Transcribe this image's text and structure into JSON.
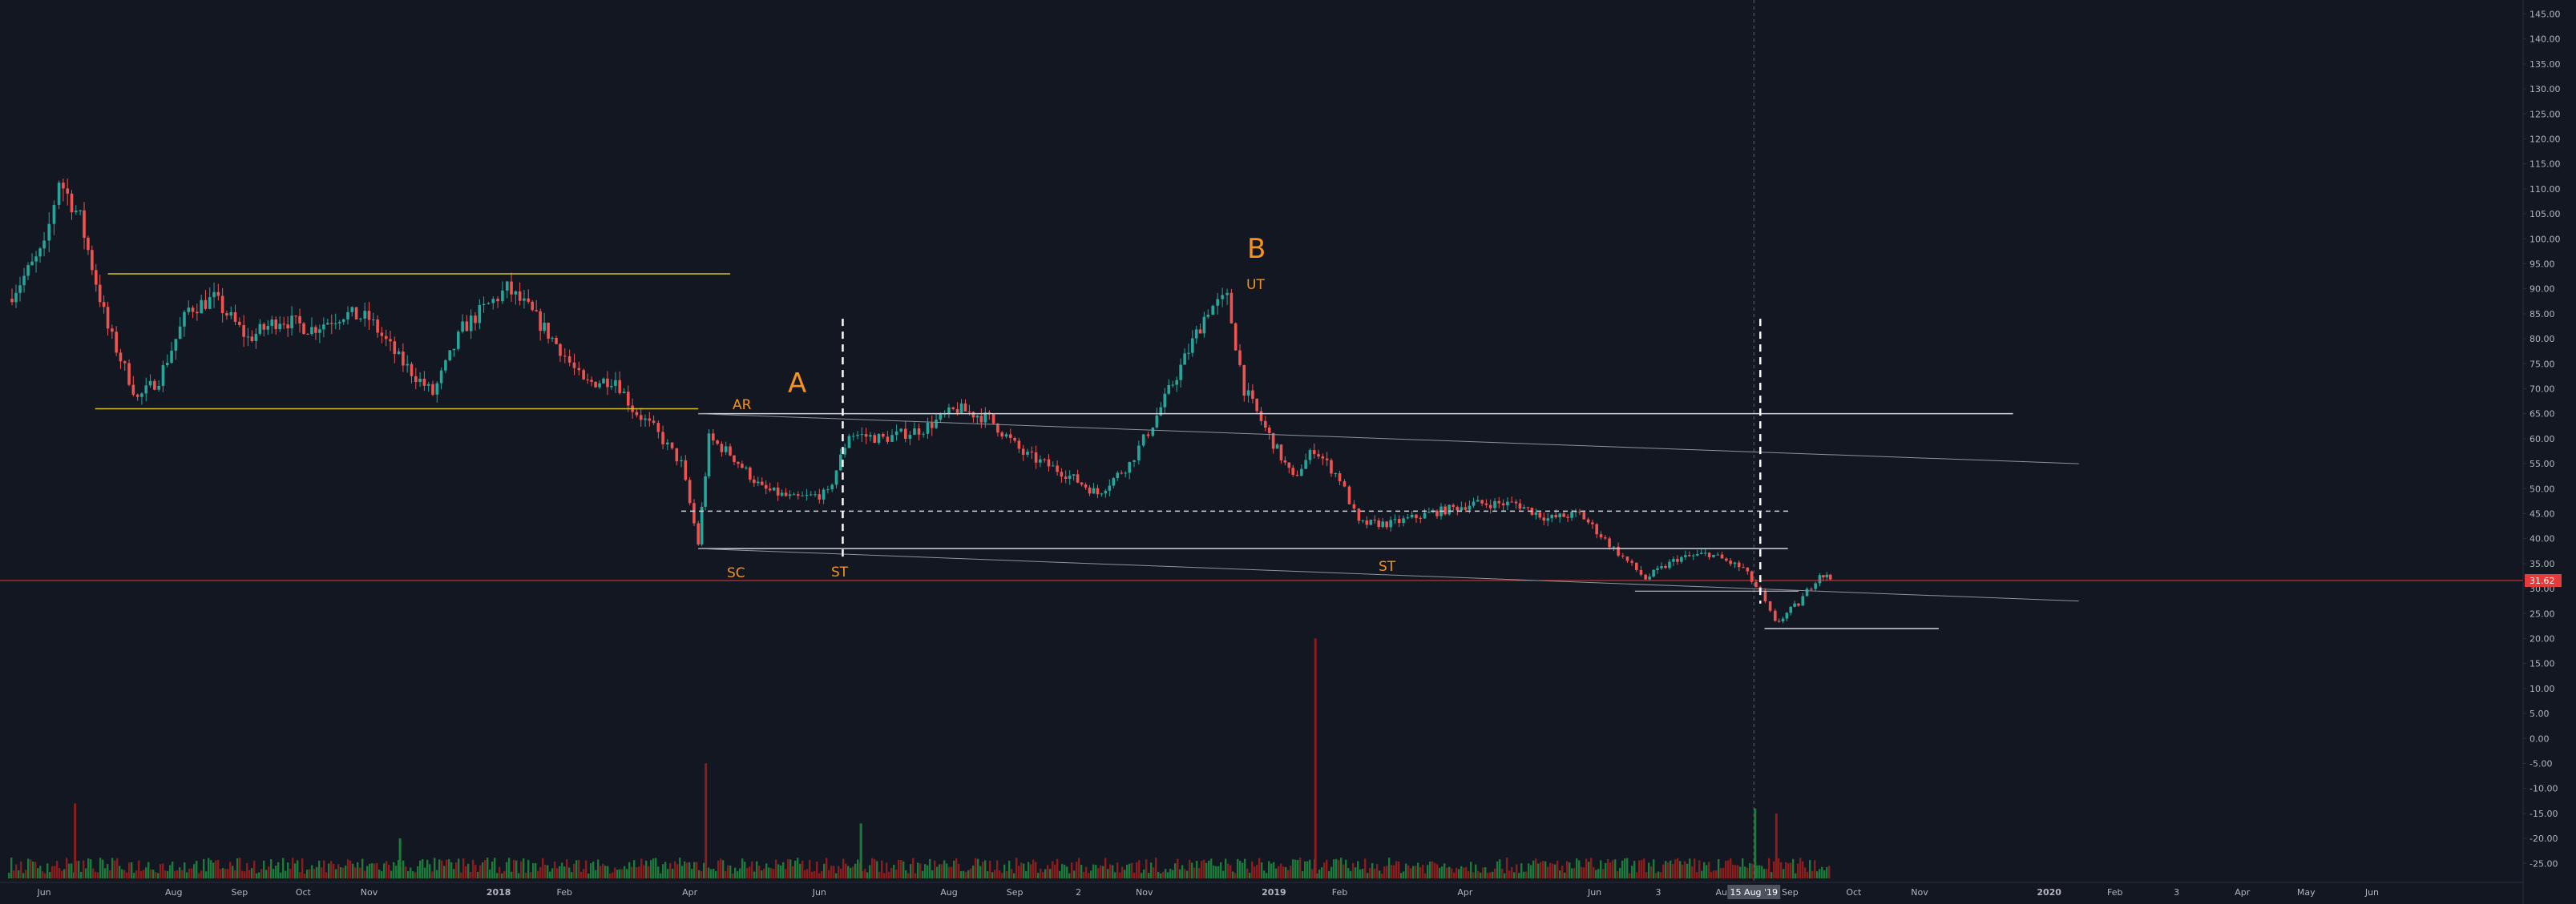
{
  "colors": {
    "background": "#131722",
    "up": "#26a69a",
    "down": "#ef5350",
    "volume_up": "#1c7a3a",
    "volume_down": "#8b1d1d",
    "range_line": "#d4c12a",
    "level_line": "#d1d4dc",
    "trend_line": "#8f939c",
    "annotation": "#f7931a",
    "price_line": "#e63b3b",
    "axis_text": "#b2b5be"
  },
  "chart_data": {
    "type": "candlestick",
    "x_ticks": [
      "Jun",
      "Aug",
      "Sep",
      "Oct",
      "Nov",
      "2018",
      "Feb",
      "Apr",
      "Jun",
      "Aug",
      "Sep",
      "2",
      "Nov",
      "2019",
      "Feb",
      "Apr",
      "Jun",
      "3",
      "Aug",
      "Sep",
      "Oct",
      "Nov",
      "2020",
      "Feb",
      "3",
      "Apr",
      "May",
      "Jun"
    ],
    "y_ticks": [
      "145.00",
      "140.00",
      "135.00",
      "130.00",
      "125.00",
      "120.00",
      "115.00",
      "110.00",
      "105.00",
      "100.00",
      "95.00",
      "90.00",
      "85.00",
      "80.00",
      "75.00",
      "70.00",
      "65.00",
      "60.00",
      "55.00",
      "50.00",
      "45.00",
      "40.00",
      "35.00",
      "30.00",
      "25.00",
      "20.00",
      "15.00",
      "10.00",
      "5.00",
      "0.00",
      "-5.00",
      "-10.00",
      "-15.00",
      "-20.00",
      "-25.00"
    ],
    "ylim": [
      -28,
      147
    ],
    "last_price_label": "31.62",
    "last_price": 31.62,
    "crosshair_date_label": "15 Aug '19",
    "price_path": [
      [
        "2017-05-15",
        88
      ],
      [
        "2017-06-01",
        98
      ],
      [
        "2017-06-08",
        112
      ],
      [
        "2017-06-18",
        104
      ],
      [
        "2017-07-01",
        82
      ],
      [
        "2017-07-15",
        68
      ],
      [
        "2017-07-25",
        72
      ],
      [
        "2017-08-08",
        86
      ],
      [
        "2017-08-20",
        88
      ],
      [
        "2017-09-05",
        80
      ],
      [
        "2017-09-20",
        84
      ],
      [
        "2017-10-05",
        82
      ],
      [
        "2017-10-20",
        85
      ],
      [
        "2017-11-01",
        84
      ],
      [
        "2017-11-15",
        76
      ],
      [
        "2017-12-01",
        69
      ],
      [
        "2017-12-15",
        82
      ],
      [
        "2017-12-25",
        86
      ],
      [
        "2018-01-05",
        90
      ],
      [
        "2018-01-15",
        86
      ],
      [
        "2018-01-30",
        78
      ],
      [
        "2018-02-10",
        71
      ],
      [
        "2018-02-25",
        72
      ],
      [
        "2018-03-05",
        66
      ],
      [
        "2018-03-15",
        62
      ],
      [
        "2018-03-28",
        55
      ],
      [
        "2018-04-05",
        39
      ],
      [
        "2018-04-10",
        60
      ],
      [
        "2018-04-20",
        57
      ],
      [
        "2018-05-05",
        50
      ],
      [
        "2018-05-20",
        48
      ],
      [
        "2018-06-05",
        49
      ],
      [
        "2018-06-15",
        61
      ],
      [
        "2018-07-01",
        60
      ],
      [
        "2018-07-20",
        62
      ],
      [
        "2018-08-05",
        66
      ],
      [
        "2018-08-20",
        64
      ],
      [
        "2018-09-05",
        57
      ],
      [
        "2018-09-25",
        53
      ],
      [
        "2018-10-10",
        49
      ],
      [
        "2018-10-25",
        55
      ],
      [
        "2018-11-05",
        63
      ],
      [
        "2018-11-20",
        76
      ],
      [
        "2018-12-01",
        86
      ],
      [
        "2018-12-10",
        88
      ],
      [
        "2018-12-18",
        70
      ],
      [
        "2018-12-28",
        62
      ],
      [
        "2019-01-10",
        52
      ],
      [
        "2019-01-20",
        58
      ],
      [
        "2019-02-01",
        52
      ],
      [
        "2019-02-10",
        43
      ],
      [
        "2019-02-25",
        43
      ],
      [
        "2019-03-15",
        45
      ],
      [
        "2019-04-05",
        47
      ],
      [
        "2019-04-25",
        47
      ],
      [
        "2019-05-10",
        44
      ],
      [
        "2019-05-25",
        45
      ],
      [
        "2019-06-10",
        38
      ],
      [
        "2019-06-25",
        32
      ],
      [
        "2019-07-10",
        36
      ],
      [
        "2019-07-25",
        37
      ],
      [
        "2019-08-10",
        34
      ],
      [
        "2019-08-18",
        29
      ],
      [
        "2019-08-25",
        23
      ],
      [
        "2019-09-05",
        27
      ],
      [
        "2019-09-15",
        33
      ],
      [
        "2019-09-20",
        32
      ]
    ],
    "volume_spikes": [
      [
        "2017-06-15",
        -13
      ],
      [
        "2017-11-15",
        -20
      ],
      [
        "2018-04-08",
        -5
      ],
      [
        "2018-06-20",
        -17
      ],
      [
        "2019-01-20",
        20
      ],
      [
        "2019-08-15",
        -14
      ],
      [
        "2019-08-25",
        -15
      ]
    ],
    "annotations": {
      "A": "A",
      "B": "B",
      "AR": "AR",
      "SC": "SC",
      "ST1": "ST",
      "ST2": "ST",
      "UT": "UT"
    },
    "levels": {
      "range_top": 93,
      "range_bottom": 66,
      "resistance": 65,
      "dashed_mid": 45.5,
      "support": 38,
      "lower_support": 22
    }
  }
}
